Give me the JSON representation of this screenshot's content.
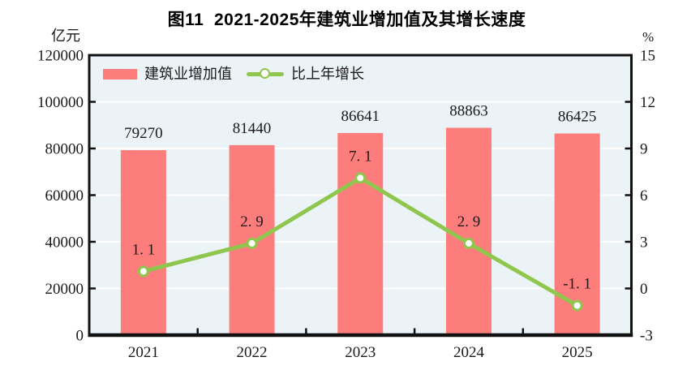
{
  "title": "图11  2021-2025年建筑业增加值及其增长速度",
  "chart_data": {
    "type": "bar",
    "subtype": "bar-line-combo",
    "title": "图11  2021-2025年建筑业增加值及其增长速度",
    "categories": [
      "2021",
      "2022",
      "2023",
      "2024",
      "2025"
    ],
    "series": [
      {
        "name": "建筑业增加值",
        "type": "bar",
        "axis": "left",
        "color": "#FC7D7B",
        "values": [
          79270,
          81440,
          86641,
          88863,
          86425
        ],
        "labels": [
          "79270",
          "81440",
          "86641",
          "88863",
          "86425"
        ]
      },
      {
        "name": "比上年增长",
        "type": "line",
        "axis": "right",
        "color": "#8FC74E",
        "marker": "white-circle",
        "values": [
          1.1,
          2.9,
          7.1,
          2.9,
          -1.1
        ],
        "labels": [
          "1. 1",
          "2. 9",
          "7. 1",
          "2. 9",
          "-1. 1"
        ]
      }
    ],
    "left_axis": {
      "unit": "亿元",
      "min": 0,
      "max": 120000,
      "step": 20000,
      "tick_labels": [
        "120000",
        "100000",
        "80000",
        "60000",
        "40000",
        "20000",
        "0"
      ]
    },
    "right_axis": {
      "unit": "%",
      "min": -3,
      "max": 15,
      "step": 3,
      "tick_labels": [
        "15",
        "12",
        "9",
        "6",
        "3",
        "0",
        "-3"
      ]
    },
    "x_axis": {
      "tick_labels": [
        "2021",
        "2022",
        "2023",
        "2024",
        "2025"
      ]
    },
    "grid": "horizontal-white-lines",
    "legend_position": "inside-top-left",
    "colors": {
      "plot_background": "#ECF3F7",
      "gridline": "#FFFFFF",
      "axis_line": "#111111",
      "label_text": "#1A1A1A"
    }
  }
}
